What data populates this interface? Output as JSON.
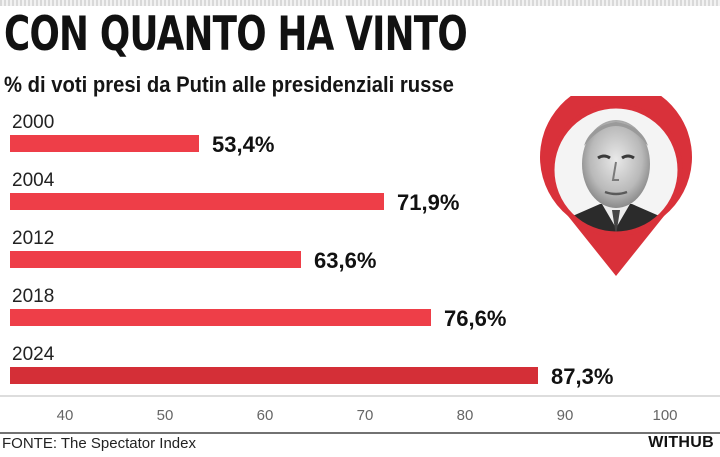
{
  "title": "CON QUANTO HA VINTO",
  "subtitle": "% di voti presi da Putin alle presidenziali russe",
  "source": "FONTE: The Spectator Index",
  "brand": "WITHUB",
  "colors": {
    "bar": "#ee3e48",
    "bar_last": "#d42f37",
    "pin": "#d9313a",
    "axis": "#bbbbbb"
  },
  "image": {
    "icon": "putin-portrait-pin"
  },
  "chart_data": {
    "type": "bar",
    "orientation": "horizontal",
    "categories": [
      "2000",
      "2004",
      "2012",
      "2018",
      "2024"
    ],
    "values": [
      53.4,
      71.9,
      63.6,
      76.6,
      87.3
    ],
    "value_labels": [
      "53,4%",
      "71,9%",
      "63,6%",
      "76,6%",
      "87,3%"
    ],
    "xlim": [
      35,
      100
    ],
    "xticks": [
      40,
      50,
      60,
      70,
      80,
      90,
      100
    ],
    "title": "CON QUANTO HA VINTO",
    "subtitle": "% di voti presi da Putin alle presidenziali russe",
    "grid": false
  }
}
